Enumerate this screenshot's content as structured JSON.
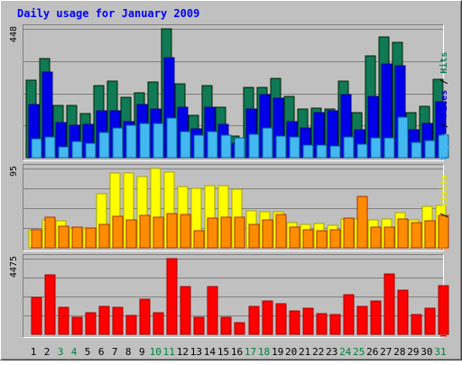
{
  "chart_data": {
    "type": "bar",
    "title": "Daily usage for January 2009",
    "x": [
      "1",
      "2",
      "3",
      "4",
      "5",
      "6",
      "7",
      "8",
      "9",
      "10",
      "11",
      "12",
      "13",
      "14",
      "15",
      "16",
      "17",
      "18",
      "19",
      "20",
      "21",
      "22",
      "23",
      "24",
      "25",
      "26",
      "27",
      "28",
      "29",
      "30",
      "31"
    ],
    "weekend_days": [
      "3",
      "4",
      "10",
      "11",
      "17",
      "18",
      "24",
      "25",
      "31"
    ],
    "panels": [
      {
        "id": "hits-files-pages",
        "max_label": "448",
        "ylim": [
          0,
          448
        ],
        "series_labels": [
          "Pages",
          "Files",
          "Hits"
        ],
        "series": [
          {
            "name": "Hits",
            "color": "#0f7a55",
            "values": [
              268,
              345,
              181,
              181,
              152,
              250,
              265,
              211,
              224,
              262,
              448,
              258,
              146,
              252,
              174,
              74,
              245,
              244,
              277,
              213,
              170,
              171,
              170,
              265,
              158,
              355,
              420,
              402,
              158,
              178,
              271
            ]
          },
          {
            "name": "Files",
            "color": "#0000e8",
            "values": [
              185,
              297,
              121,
              112,
              115,
              162,
              162,
              125,
              186,
              168,
              348,
              175,
              101,
              175,
              116,
              49,
              168,
              220,
              206,
              125,
              103,
              157,
              162,
              218,
              98,
              212,
              326,
              321,
              97,
              118,
              193
            ]
          },
          {
            "name": "Pages",
            "color": "#44b8f0",
            "values": [
              66,
              72,
              39,
              57,
              50,
              87,
              104,
              112,
              119,
              119,
              137,
              90,
              79,
              90,
              79,
              68,
              82,
              102,
              76,
              73,
              44,
              43,
              40,
              72,
              46,
              68,
              68,
              142,
              53,
              60,
              77
            ]
          }
        ]
      },
      {
        "id": "visits-sites",
        "max_label": "95",
        "ylim": [
          0,
          95
        ],
        "series_labels": [
          "Sites",
          "Visits"
        ],
        "series": [
          {
            "name": "Visits",
            "color": "#ffff00",
            "values": [
              22,
              33,
              32,
              24,
              24,
              65,
              90,
              90,
              85,
              95,
              91,
              73,
              71,
              75,
              75,
              70,
              44,
              43,
              43,
              30,
              28,
              29,
              27,
              35,
              35,
              33,
              35,
              42,
              33,
              50,
              51
            ]
          },
          {
            "name": "Sites",
            "color": "#ff8c00",
            "values": [
              22,
              37,
              26,
              25,
              24,
              28,
              38,
              34,
              39,
              37,
              41,
              40,
              20,
              36,
              37,
              37,
              28,
              33,
              40,
              25,
              22,
              21,
              22,
              36,
              62,
              25,
              25,
              35,
              30,
              32,
              39
            ]
          }
        ]
      },
      {
        "id": "kbytes",
        "max_label": "4475",
        "ylim": [
          0,
          4475
        ],
        "series_labels": [
          "KBytes"
        ],
        "series": [
          {
            "name": "KBytes",
            "color": "#ff0000",
            "values": [
              2187,
              3513,
              1589,
              1004,
              1288,
              1673,
              1612,
              1126,
              2096,
              1297,
              4475,
              2823,
              1004,
              2818,
              987,
              705,
              1667,
              1948,
              1785,
              1369,
              1562,
              1199,
              1164,
              2350,
              1665,
              1983,
              3548,
              2605,
              1189,
              1545,
              2884
            ]
          }
        ]
      }
    ],
    "colors": {
      "frame_bg": "#c0c0c0",
      "title_color": "#0000ff",
      "weekday_label": "#000000",
      "weekend_label": "#00803d",
      "label_Hits": "#0f7a55",
      "label_Files": "#0000e8",
      "label_Pages": "#44b8f0",
      "label_Visits": "#e5e500",
      "label_Sites": "#ff8c00",
      "label_KBytes": "#ff0000",
      "slash": "#000000"
    }
  }
}
